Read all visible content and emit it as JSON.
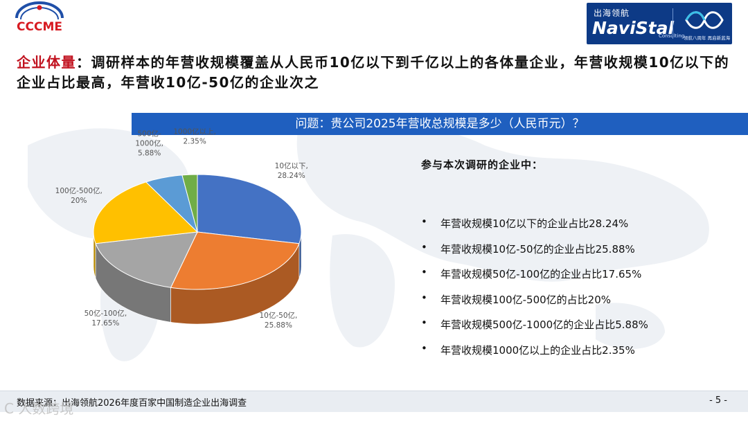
{
  "logos": {
    "left_text": "CCCME",
    "right_cn": "出海领航",
    "right_en": "NaviStal",
    "right_sub": "Consulting",
    "right_tag": "领航八周年 再启新蓝海"
  },
  "headline": {
    "key": "企业体量",
    "sep": "：",
    "text": "调研样本的年营收规模覆盖从人民币10亿以下到千亿以上的各体量企业，年营收规模10亿以下的企业占比最高，年营收10亿-50亿的企业次之"
  },
  "question": "问题：贵公司2025年营收总规模是多少（人民币元）？",
  "chart_data": {
    "type": "pie",
    "categories": [
      "10亿以下",
      "10亿-50亿",
      "50亿-100亿",
      "100亿-500亿",
      "500亿-1000亿",
      "1000亿以上"
    ],
    "values": [
      28.24,
      25.88,
      17.65,
      20,
      5.88,
      2.35
    ],
    "labels": [
      [
        "10亿以下,",
        "28.24%"
      ],
      [
        "10亿-50亿,",
        "25.88%"
      ],
      [
        "50亿-100亿,",
        "17.65%"
      ],
      [
        "100亿-500亿,",
        "20%"
      ],
      [
        "500亿-",
        "1000亿,",
        "5.88%"
      ],
      [
        "1000亿以上,",
        "2.35%"
      ]
    ],
    "colors": [
      "#4472c4",
      "#ed7d31",
      "#a5a5a5",
      "#ffc000",
      "#5b9bd5",
      "#70ad47"
    ],
    "style": "3d"
  },
  "intro": "参与本次调研的企业中：",
  "bullets": [
    "年营收规模10亿以下的企业占比28.24%",
    "年营收规模10亿-50亿的企业占比25.88%",
    "年营收规模50亿-100亿的企业占比17.65%",
    "年营收规模100亿-500亿的占比20%",
    "年营收规模500亿-1000亿的企业占比5.88%",
    "年营收规模1000亿以上的企业占比2.35%"
  ],
  "bullet_mark": "•",
  "footer": {
    "source": "数据来源：出海领航2026年度百家中国制造企业出海调查",
    "page": "- 5 -"
  },
  "watermark": "C 人数跨境"
}
